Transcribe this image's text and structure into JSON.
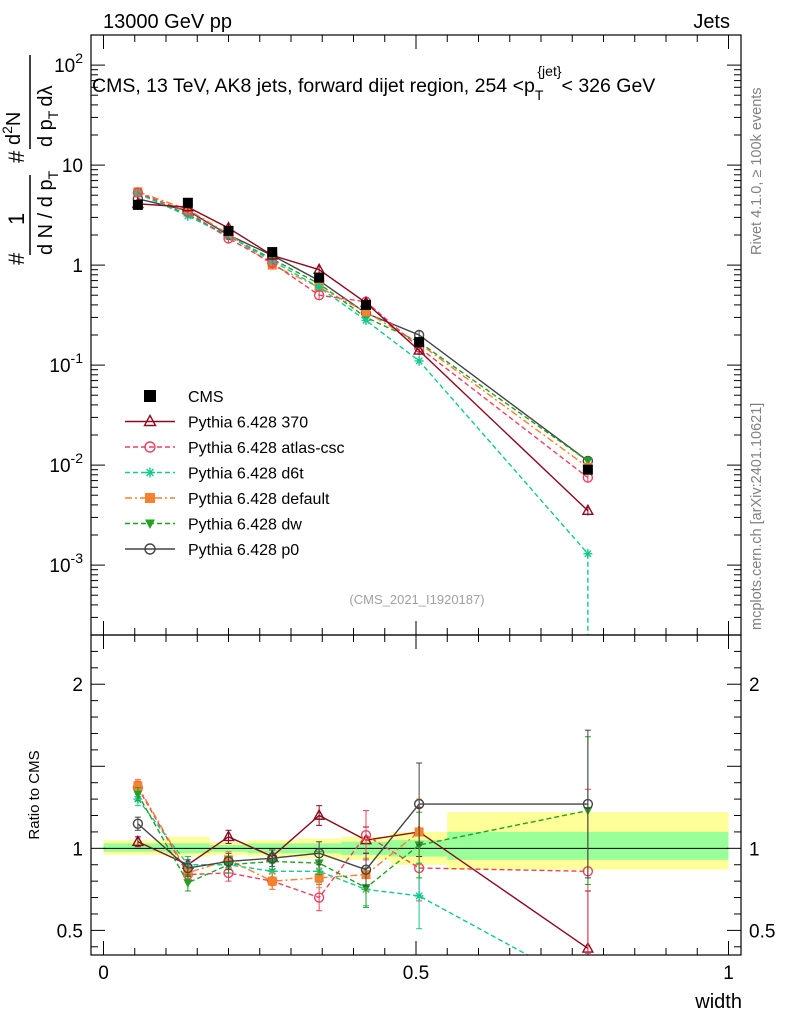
{
  "header": {
    "left": "13000 GeV pp",
    "right": "Jets"
  },
  "side_labels": {
    "rivet": "Rivet 4.1.0, ≥ 100k events",
    "mcplots": "mcplots.cern.ch [arXiv:2401.10621]"
  },
  "watermark": "(CMS_2021_I1920187)",
  "chart_data": [
    {
      "type": "line",
      "panel": "main",
      "title": "CMS, 13 TeV, AK8 jets, forward dijet region, 254 <p_T^{jet}< 326 GeV",
      "title_parts": {
        "pre": "CMS, 13 TeV, AK8 jets, forward dijet region, 254 <p",
        "sub": "T",
        "sup": "{jet}",
        "post": "< 326 GeV"
      },
      "ylabel": "1/(dN/dpT) d²N/(dpT dλ)",
      "ylabel_parts": {
        "one": "1",
        "denom_pre": "d N / d p",
        "denom_sub": "T",
        "num_pre": "d",
        "num_sup": "2",
        "num_post": "N",
        "den2_pre": "d p",
        "den2_sub": "T",
        "den2_post": "dλ",
        "hash": "#"
      },
      "yscale": "log",
      "ylim": [
        0.0002,
        200
      ],
      "xlim": [
        -0.02,
        1.02
      ],
      "y_ticks": [
        {
          "value": 0.001,
          "base": "10",
          "exp": "-3"
        },
        {
          "value": 0.01,
          "base": "10",
          "exp": "-2"
        },
        {
          "value": 0.1,
          "base": "10",
          "exp": "-1"
        },
        {
          "value": 1,
          "label": "1"
        },
        {
          "value": 10,
          "label": "10"
        },
        {
          "value": 100,
          "base": "10",
          "exp": "2"
        }
      ],
      "x": [
        0.055,
        0.135,
        0.2,
        0.27,
        0.345,
        0.42,
        0.505,
        0.775
      ],
      "series": [
        {
          "name": "CMS",
          "color": "#000000",
          "marker": "square-filled",
          "dash": "none",
          "line": false,
          "values": [
            4.0,
            4.2,
            2.2,
            1.35,
            0.75,
            0.4,
            0.17,
            0.009
          ]
        },
        {
          "name": "Pythia 6.428 370",
          "color": "#8b0a1e",
          "marker": "triangle-open",
          "dash": "none",
          "line": true,
          "values": [
            4.1,
            3.8,
            2.35,
            1.25,
            0.9,
            0.42,
            0.14,
            0.0035
          ]
        },
        {
          "name": "Pythia 6.428 atlas-csc",
          "color": "#e8435e",
          "marker": "circle-open",
          "dash": "5,3",
          "line": true,
          "values": [
            5.3,
            3.4,
            1.85,
            1.05,
            0.5,
            0.43,
            0.15,
            0.0075
          ]
        },
        {
          "name": "Pythia 6.428 d6t",
          "color": "#13c98f",
          "marker": "star",
          "dash": "5,3",
          "line": true,
          "values": [
            5.2,
            3.1,
            1.95,
            1.1,
            0.6,
            0.28,
            0.11,
            0.0013
          ]
        },
        {
          "name": "Pythia 6.428 default",
          "color": "#f7812e",
          "marker": "square-filled",
          "dash": "7,3,2,3",
          "line": true,
          "values": [
            5.4,
            3.6,
            2.05,
            1.0,
            0.6,
            0.34,
            0.165,
            0.0095
          ]
        },
        {
          "name": "Pythia 6.428 dw",
          "color": "#22a022",
          "marker": "triangle-down-filled",
          "dash": "5,3",
          "line": true,
          "values": [
            5.2,
            3.2,
            1.95,
            1.15,
            0.65,
            0.3,
            0.17,
            0.011
          ]
        },
        {
          "name": "Pythia 6.428 p0",
          "color": "#444444",
          "marker": "circle-open",
          "dash": "none",
          "line": true,
          "values": [
            4.6,
            3.5,
            2.0,
            1.25,
            0.7,
            0.33,
            0.2,
            0.011
          ]
        }
      ]
    },
    {
      "type": "line",
      "panel": "ratio",
      "ylabel": "Ratio to CMS",
      "xlabel": "width",
      "ylim": [
        0.35,
        2.3
      ],
      "xlim": [
        -0.02,
        1.02
      ],
      "x_ticks": [
        0,
        0.5,
        1
      ],
      "x_tick_labels": [
        "0",
        "0.5",
        "1"
      ],
      "y_ticks": [
        0.5,
        1,
        2
      ],
      "y_tick_labels": [
        "0.5",
        "1",
        "2"
      ],
      "uncertainty_bands": {
        "outer_color": "#ffff99",
        "inner_color": "#99ff99",
        "bins": [
          {
            "x0": 0.0,
            "x1": 0.1,
            "outer": [
              0.96,
              1.05
            ],
            "inner": [
              0.98,
              1.03
            ]
          },
          {
            "x0": 0.1,
            "x1": 0.17,
            "outer": [
              0.95,
              1.07
            ],
            "inner": [
              0.97,
              1.03
            ]
          },
          {
            "x0": 0.17,
            "x1": 0.23,
            "outer": [
              0.96,
              1.04
            ],
            "inner": [
              0.98,
              1.02
            ]
          },
          {
            "x0": 0.23,
            "x1": 0.31,
            "outer": [
              0.95,
              1.05
            ],
            "inner": [
              0.97,
              1.03
            ]
          },
          {
            "x0": 0.31,
            "x1": 0.38,
            "outer": [
              0.94,
              1.06
            ],
            "inner": [
              0.97,
              1.03
            ]
          },
          {
            "x0": 0.38,
            "x1": 0.46,
            "outer": [
              0.93,
              1.07
            ],
            "inner": [
              0.96,
              1.04
            ]
          },
          {
            "x0": 0.46,
            "x1": 0.55,
            "outer": [
              0.9,
              1.1
            ],
            "inner": [
              0.95,
              1.05
            ]
          },
          {
            "x0": 0.55,
            "x1": 1.0,
            "outer": [
              0.87,
              1.22
            ],
            "inner": [
              0.93,
              1.1
            ]
          }
        ]
      },
      "x": [
        0.055,
        0.135,
        0.2,
        0.27,
        0.345,
        0.42,
        0.505,
        0.775
      ],
      "series": [
        {
          "name": "Pythia 6.428 370",
          "color": "#8b0a1e",
          "marker": "triangle-open",
          "dash": "none",
          "values": [
            1.04,
            0.9,
            1.07,
            0.95,
            1.2,
            1.05,
            1.1,
            0.39
          ],
          "errors": [
            0.03,
            0.05,
            0.04,
            0.04,
            0.06,
            0.08,
            0.15,
            0.35
          ]
        },
        {
          "name": "Pythia 6.428 atlas-csc",
          "color": "#e8435e",
          "marker": "circle-open",
          "dash": "5,3",
          "line": true,
          "values": [
            1.37,
            0.84,
            0.85,
            0.8,
            0.7,
            1.08,
            0.88,
            0.86
          ],
          "errors": [
            0.04,
            0.05,
            0.05,
            0.05,
            0.08,
            0.15,
            0.2,
            0.5
          ]
        },
        {
          "name": "Pythia 6.428 d6t",
          "color": "#13c98f",
          "marker": "star",
          "dash": "5,3",
          "values": [
            1.3,
            0.9,
            0.9,
            0.86,
            0.86,
            0.75,
            0.71,
            0.15
          ],
          "errors": [
            0.04,
            0.05,
            0.05,
            0.05,
            0.07,
            0.1,
            0.2,
            0.1
          ]
        },
        {
          "name": "Pythia 6.428 default",
          "color": "#f7812e",
          "marker": "square-filled",
          "dash": "7,3,2,3",
          "values": [
            1.38,
            0.85,
            0.93,
            0.8,
            0.82,
            0.84,
            1.1,
            null
          ],
          "errors": [
            0.04,
            0.05,
            0.05,
            0.05,
            0.06,
            0.1,
            0.2,
            0
          ]
        },
        {
          "name": "Pythia 6.428 dw",
          "color": "#22a022",
          "marker": "triangle-down-filled",
          "dash": "5,3",
          "values": [
            1.33,
            0.79,
            0.9,
            0.92,
            0.91,
            0.76,
            1.02,
            1.23
          ],
          "errors": [
            0.04,
            0.05,
            0.05,
            0.05,
            0.07,
            0.12,
            0.2,
            0.45
          ]
        },
        {
          "name": "Pythia 6.428 p0",
          "color": "#444444",
          "marker": "circle-open",
          "dash": "none",
          "values": [
            1.15,
            0.88,
            0.92,
            0.94,
            0.97,
            0.87,
            1.27,
            1.27
          ],
          "errors": [
            0.04,
            0.05,
            0.05,
            0.05,
            0.07,
            0.1,
            0.25,
            0.45
          ]
        }
      ]
    }
  ]
}
